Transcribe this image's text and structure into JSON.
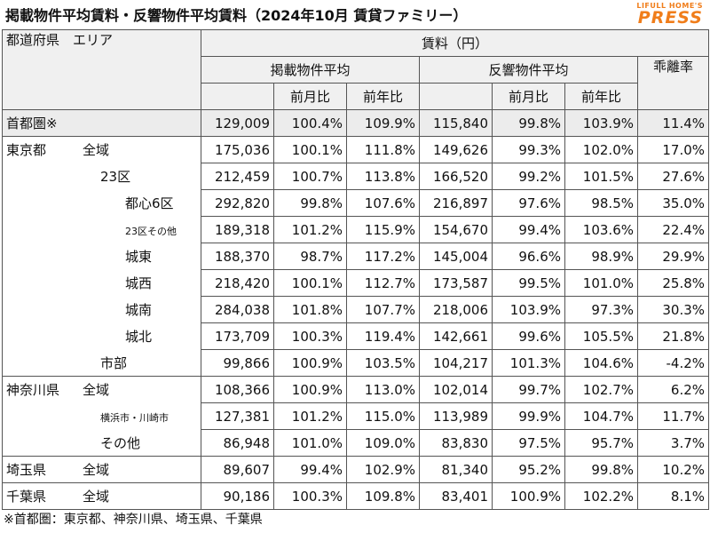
{
  "title": "掲載物件平均賃料・反響物件平均賃料（2024年10月 賃貸ファミリー）",
  "brand": {
    "line1": "LIFULL HOME'S",
    "line2": "PRESS",
    "color": "#f07d1a"
  },
  "header": {
    "region_col": "都道府県　エリア",
    "rent": "賃料（円）",
    "listed_avg": "掲載物件平均",
    "response_avg": "反響物件平均",
    "gap": "乖離率",
    "mom": "前月比",
    "yoy": "前年比"
  },
  "rows": [
    {
      "pref": "首都圏※",
      "area": "",
      "v": [
        "129,009",
        "100.4%",
        "109.9%",
        "115,840",
        "99.8%",
        "103.9%",
        "11.4%"
      ]
    },
    {
      "pref": "東京都",
      "area": "全域",
      "v": [
        "175,036",
        "100.1%",
        "111.8%",
        "149,626",
        "99.3%",
        "102.0%",
        "17.0%"
      ]
    },
    {
      "pref": "",
      "area": "23区",
      "v": [
        "212,459",
        "100.7%",
        "113.8%",
        "166,520",
        "99.2%",
        "101.5%",
        "27.6%"
      ]
    },
    {
      "pref": "",
      "area": "都心6区",
      "v": [
        "292,820",
        "99.8%",
        "107.6%",
        "216,897",
        "97.6%",
        "98.5%",
        "35.0%"
      ]
    },
    {
      "pref": "",
      "area": "23区その他",
      "v": [
        "189,318",
        "101.2%",
        "115.9%",
        "154,670",
        "99.4%",
        "103.6%",
        "22.4%"
      ]
    },
    {
      "pref": "",
      "area": "城東",
      "v": [
        "188,370",
        "98.7%",
        "117.2%",
        "145,004",
        "96.6%",
        "98.9%",
        "29.9%"
      ]
    },
    {
      "pref": "",
      "area": "城西",
      "v": [
        "218,420",
        "100.1%",
        "112.7%",
        "173,587",
        "99.5%",
        "101.0%",
        "25.8%"
      ]
    },
    {
      "pref": "",
      "area": "城南",
      "v": [
        "284,038",
        "101.8%",
        "107.7%",
        "218,006",
        "103.9%",
        "97.3%",
        "30.3%"
      ]
    },
    {
      "pref": "",
      "area": "城北",
      "v": [
        "173,709",
        "100.3%",
        "119.4%",
        "142,661",
        "99.6%",
        "105.5%",
        "21.8%"
      ]
    },
    {
      "pref": "",
      "area": "市部",
      "v": [
        "99,866",
        "100.9%",
        "103.5%",
        "104,217",
        "101.3%",
        "104.6%",
        "-4.2%"
      ]
    },
    {
      "pref": "神奈川県",
      "area": "全域",
      "v": [
        "108,366",
        "100.9%",
        "113.0%",
        "102,014",
        "99.7%",
        "102.7%",
        "6.2%"
      ]
    },
    {
      "pref": "",
      "area": "横浜市・川崎市",
      "v": [
        "127,381",
        "101.2%",
        "115.0%",
        "113,989",
        "99.9%",
        "104.7%",
        "11.7%"
      ]
    },
    {
      "pref": "",
      "area": "その他",
      "v": [
        "86,948",
        "101.0%",
        "109.0%",
        "83,830",
        "97.5%",
        "95.7%",
        "3.7%"
      ]
    },
    {
      "pref": "埼玉県",
      "area": "全域",
      "v": [
        "89,607",
        "99.4%",
        "102.9%",
        "81,340",
        "95.2%",
        "99.8%",
        "10.2%"
      ]
    },
    {
      "pref": "千葉県",
      "area": "全域",
      "v": [
        "90,186",
        "100.3%",
        "109.8%",
        "83,401",
        "100.9%",
        "102.2%",
        "8.1%"
      ]
    }
  ],
  "footnote": "※首都圏：東京都、神奈川県、埼玉県、千葉県"
}
